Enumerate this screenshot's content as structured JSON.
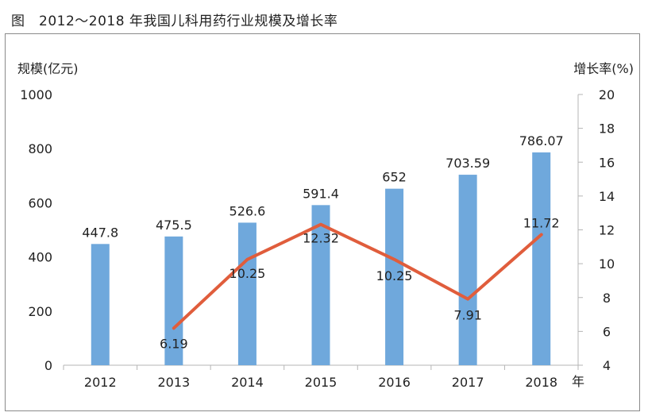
{
  "figure_title": "图　2012～2018 年我国儿科用药行业规模及增长率",
  "chart_data": {
    "type": "bar",
    "title": "",
    "xlabel": "年",
    "ylabel": "规模(亿元)",
    "y2label": "增长率(%)",
    "categories": [
      "2012",
      "2013",
      "2014",
      "2015",
      "2016",
      "2017",
      "2018"
    ],
    "ylim": [
      0,
      1000
    ],
    "yticks": [
      "0",
      "200",
      "400",
      "600",
      "800",
      "1000"
    ],
    "y2lim": [
      4,
      20
    ],
    "y2ticks": [
      "4",
      "6",
      "8",
      "10",
      "12",
      "14",
      "16",
      "18",
      "20"
    ],
    "grid": false,
    "legend": "none",
    "series": [
      {
        "kind": "bar",
        "axis": "left",
        "color": "#6fa8dc",
        "values": [
          447.8,
          475.5,
          526.6,
          591.4,
          652,
          703.59,
          786.07
        ],
        "labels": [
          "447.8",
          "475.5",
          "526.6",
          "591.4",
          "652",
          "703.59",
          "786.07"
        ]
      },
      {
        "kind": "line",
        "axis": "right",
        "color": "#e05d3c",
        "x": [
          "2013",
          "2014",
          "2015",
          "2016",
          "2017",
          "2018"
        ],
        "values": [
          6.19,
          10.25,
          12.32,
          10.25,
          7.91,
          11.72
        ],
        "labels": [
          "6.19",
          "10.25",
          "12.32",
          "10.25",
          "7.91",
          "11.72"
        ]
      }
    ]
  }
}
